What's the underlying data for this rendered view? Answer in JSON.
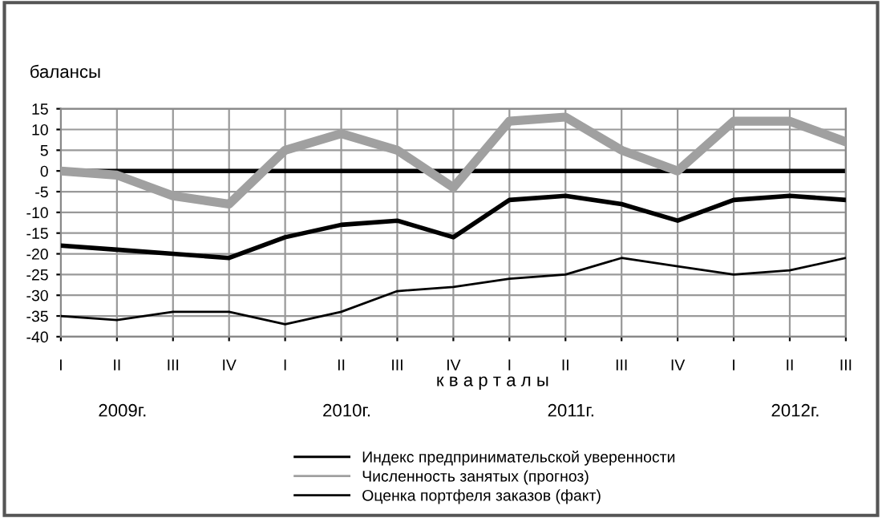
{
  "chart_data": {
    "type": "line",
    "ylabel": "балансы",
    "xlabel": "к в а р т а л ы",
    "categories": [
      "I",
      "II",
      "III",
      "IV",
      "I",
      "II",
      "III",
      "IV",
      "I",
      "II",
      "III",
      "IV",
      "I",
      "II",
      "III"
    ],
    "series": [
      {
        "name": "Индекс предпринимательской уверенности",
        "color": "#000000",
        "values": [
          -18,
          -19,
          -20,
          -21,
          -16,
          -13,
          -12,
          -16,
          -7,
          -6,
          -8,
          -12,
          -7,
          -6,
          -7
        ]
      },
      {
        "name": "Численность занятых (прогноз)",
        "color": "#a0a0a0",
        "values": [
          0,
          -1,
          -6,
          -8,
          5,
          9,
          5,
          -4,
          12,
          13,
          5,
          0,
          12,
          12,
          7
        ]
      },
      {
        "name": "Оценка портфеля заказов (факт)",
        "color": "#000000",
        "values": [
          -35,
          -36,
          -34,
          -34,
          -37,
          -34,
          -29,
          -28,
          -26,
          -25,
          -21,
          -23,
          -25,
          -24,
          -21
        ]
      }
    ],
    "ylim": [
      -40,
      15
    ],
    "yticks": [
      -40,
      -35,
      -30,
      -25,
      -20,
      -15,
      -10,
      -5,
      0,
      5,
      10,
      15
    ],
    "ref_lines": [
      {
        "axis": "y",
        "value": 0,
        "color": "#000000"
      }
    ],
    "annotations": [
      "2009г.",
      "2010г.",
      "2011г.",
      "2012г."
    ],
    "grid": true,
    "legend": "bottom",
    "marker": "none",
    "line_style": "solid"
  }
}
